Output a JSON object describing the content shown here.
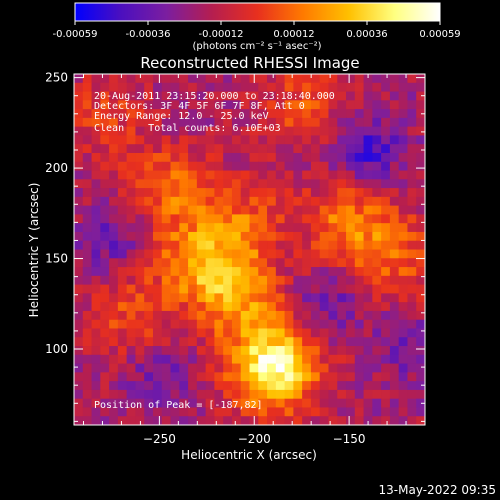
{
  "colorbar": {
    "tick_labels": [
      "-0.00059",
      "-0.00036",
      "-0.00012",
      "0.00012",
      "0.00036",
      "0.00059"
    ],
    "unit_label": "(photons cm⁻² s⁻¹ asec⁻²)",
    "range": [
      -0.00059,
      0.00059
    ],
    "colors": [
      "#0000ff",
      "#4b0fbf",
      "#7b1ea0",
      "#b51e50",
      "#e8301e",
      "#ff7a00",
      "#ffc000",
      "#ffff80",
      "#ffffff"
    ]
  },
  "chart_data": {
    "type": "heatmap",
    "title": "Reconstructed RHESSI Image",
    "xlabel": "Heliocentric X (arcsec)",
    "ylabel": "Heliocentric Y (arcsec)",
    "xlim": [
      -295,
      -110
    ],
    "ylim": [
      58,
      252
    ],
    "x_ticks": [
      -250,
      -200,
      -150
    ],
    "y_ticks": [
      100,
      150,
      200,
      250
    ],
    "annotations": [
      "20-Aug-2011 23:15:20.000 to 23:18:40.000",
      "Detectors: 3F 4F 5F 6F 7F 8F, Att 0",
      "Energy Range: 12.0 - 25.0 keV",
      "Clean    Total counts: 6.10E+03"
    ],
    "peak_label": "Position of Peak = [-187,82]",
    "peak": [
      -187,
      82
    ],
    "sources": [
      {
        "x": -190,
        "y": 90,
        "peak": 1.0
      },
      {
        "x": -210,
        "y": 130,
        "peak": 0.55
      },
      {
        "x": -230,
        "y": 150,
        "peak": 0.5
      },
      {
        "x": -205,
        "y": 170,
        "peak": 0.35
      },
      {
        "x": -245,
        "y": 190,
        "peak": 0.4
      },
      {
        "x": -150,
        "y": 170,
        "peak": 0.45
      },
      {
        "x": -125,
        "y": 150,
        "peak": 0.35
      },
      {
        "x": -265,
        "y": 120,
        "peak": 0.3
      },
      {
        "x": -175,
        "y": 235,
        "peak": 0.3
      },
      {
        "x": -280,
        "y": 230,
        "peak": 0.25
      }
    ],
    "negatives": [
      {
        "x": -140,
        "y": 210,
        "depth": 0.8
      },
      {
        "x": -275,
        "y": 160,
        "depth": 0.5
      },
      {
        "x": -160,
        "y": 125,
        "depth": 0.5
      },
      {
        "x": -120,
        "y": 100,
        "depth": 0.45
      },
      {
        "x": -250,
        "y": 85,
        "depth": 0.4
      }
    ]
  },
  "footer": {
    "date": "13-May-2022 09:35"
  }
}
